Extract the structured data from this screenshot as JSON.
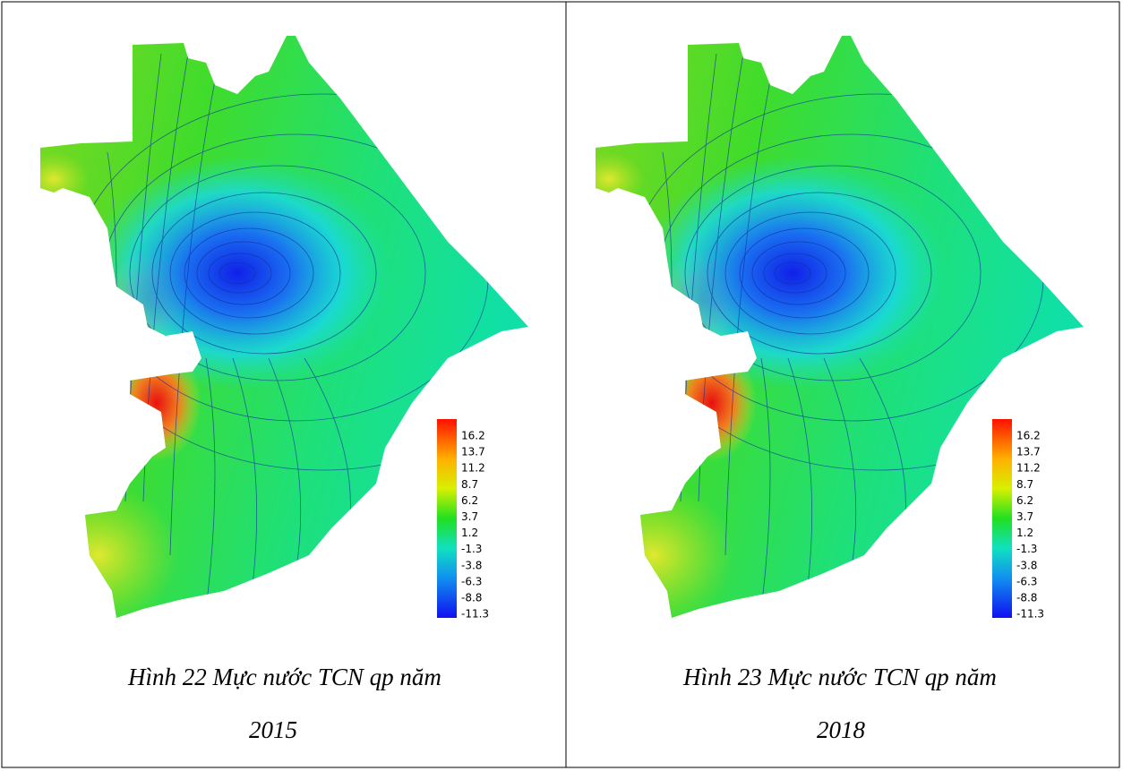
{
  "figures": [
    {
      "legend": [
        16.2,
        13.7,
        11.2,
        8.7,
        6.2,
        3.7,
        1.2,
        -1.3,
        -3.8,
        -6.3,
        -8.8,
        -11.3
      ],
      "caption_lines": [
        "Hình 22 Mực nước TCN qp năm",
        "2015"
      ]
    },
    {
      "legend": [
        16.2,
        13.7,
        11.2,
        8.7,
        6.2,
        3.7,
        1.2,
        -1.3,
        -3.8,
        -6.3,
        -8.8,
        -11.3
      ],
      "caption_lines": [
        "Hình 23 Mực nước TCN qp năm",
        "2018"
      ]
    }
  ]
}
